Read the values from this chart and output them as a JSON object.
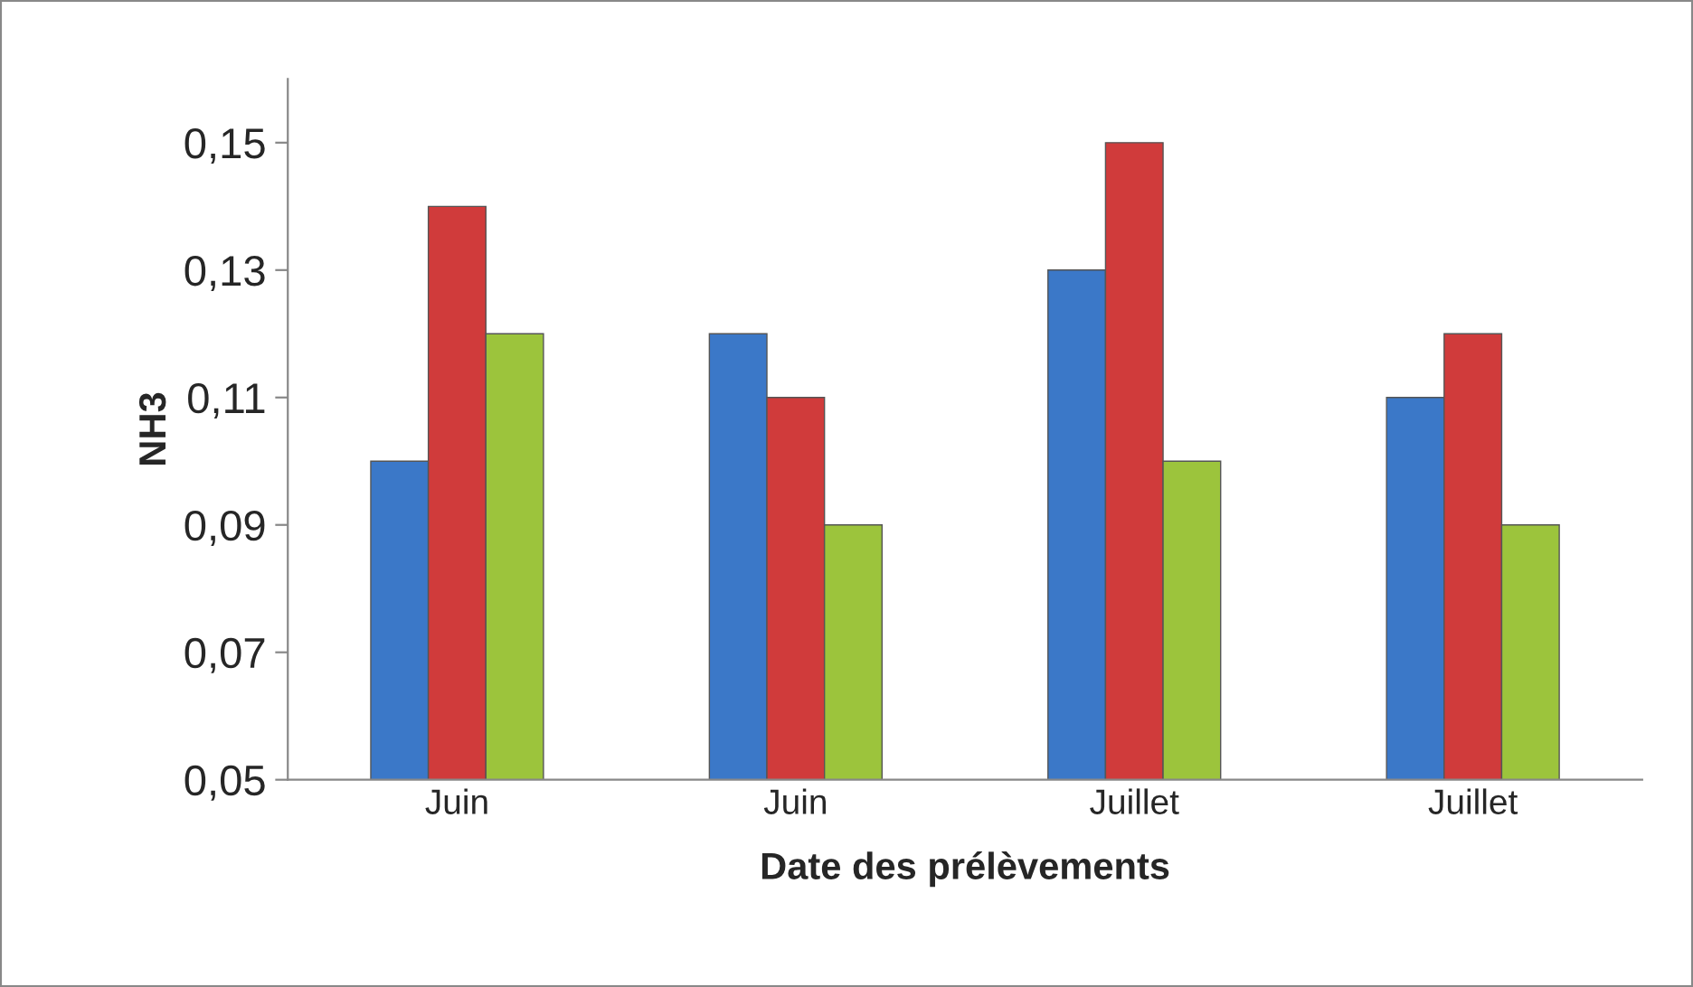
{
  "chart_data": {
    "type": "bar",
    "xlabel": "Date des prélèvements",
    "ylabel": "NH3",
    "categories": [
      "Juin",
      "Juin",
      "Juillet",
      "Juillet"
    ],
    "series": [
      {
        "color": "#3b78c8",
        "values": [
          0.1,
          0.12,
          0.13,
          0.11
        ]
      },
      {
        "color": "#d03b3b",
        "values": [
          0.14,
          0.11,
          0.15,
          0.12
        ]
      },
      {
        "color": "#9cc43c",
        "values": [
          0.12,
          0.09,
          0.1,
          0.09
        ]
      }
    ],
    "ylim": [
      0.05,
      0.16
    ],
    "yticks": [
      {
        "value": 0.05,
        "label": "0,05"
      },
      {
        "value": 0.07,
        "label": "0,07"
      },
      {
        "value": 0.09,
        "label": "0,09"
      },
      {
        "value": 0.11,
        "label": "0,11"
      },
      {
        "value": 0.13,
        "label": "0,13"
      },
      {
        "value": 0.15,
        "label": "0,15"
      }
    ],
    "grid": false
  }
}
